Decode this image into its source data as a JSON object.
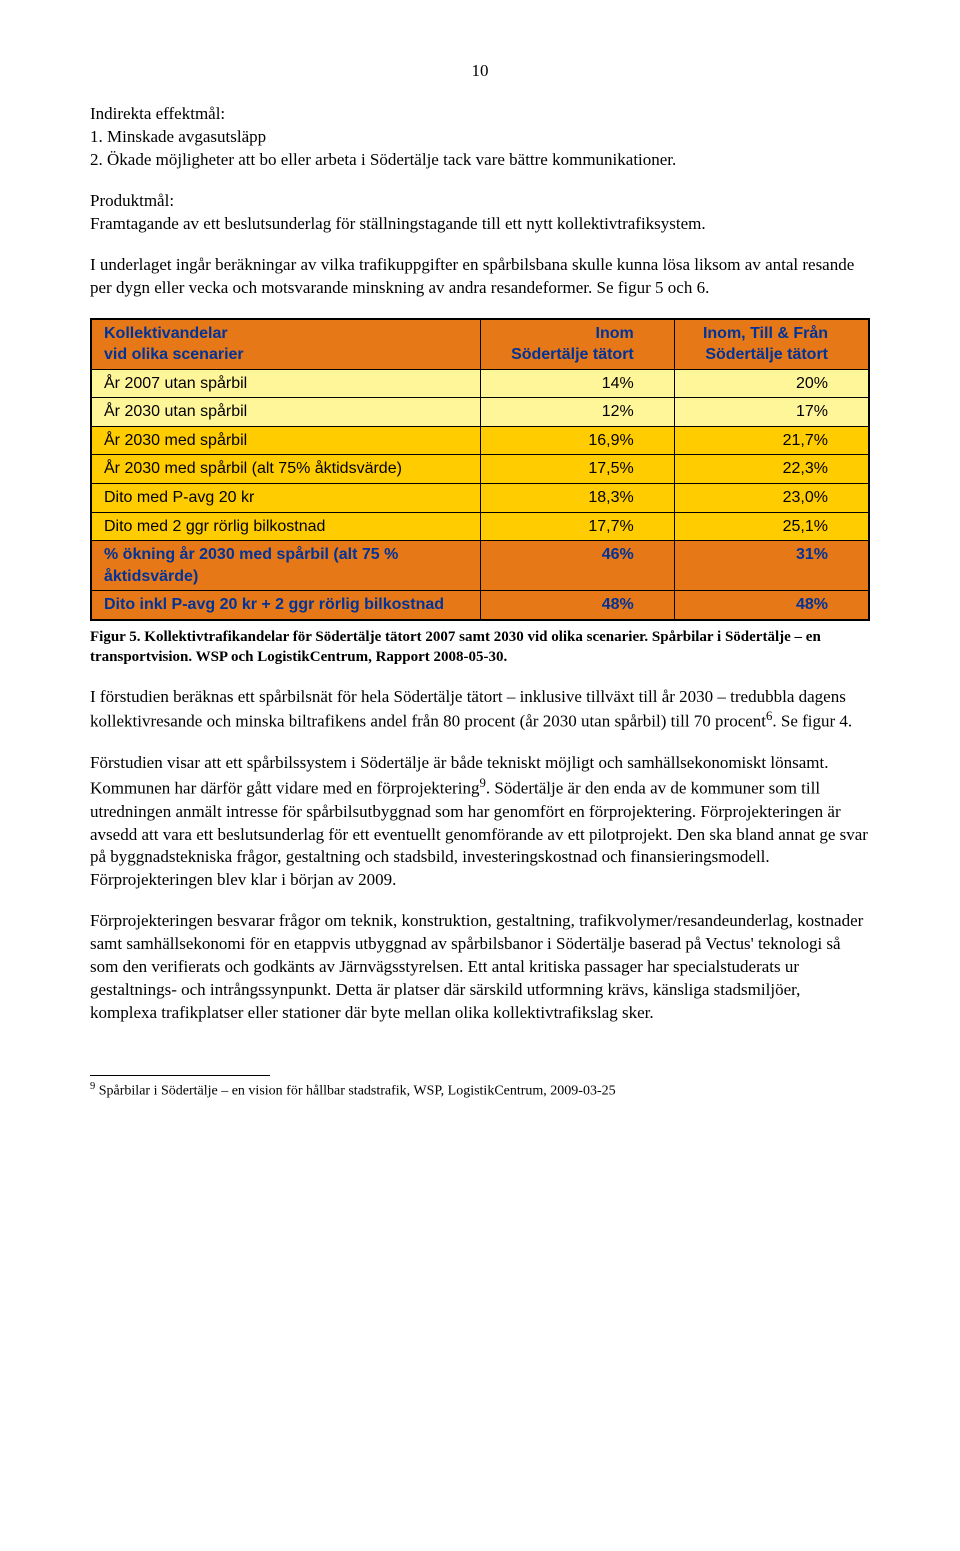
{
  "page_number": "10",
  "p1_lead": "Indirekta effektmål:",
  "p1_item1": "1. Minskade avgasutsläpp",
  "p1_item2": "2. Ökade möjligheter att bo eller arbeta i Södertälje tack vare bättre kommunikationer.",
  "p2a": "Produktmål:",
  "p2b": "Framtagande av ett beslutsunderlag för ställningstagande till ett nytt kollektivtrafiksystem.",
  "p3": "I underlaget ingår beräkningar av vilka trafikuppgifter en spårbilsbana skulle kunna lösa liksom av antal resande per dygn eller vecka och motsvarande minskning av andra resandeformer. Se figur 5 och 6.",
  "table": {
    "colors": {
      "header_bg": "#e77817",
      "body_bg": "#fff599",
      "highlight_bg": "#ffcc00",
      "header_text": "#003399",
      "body_text": "#000000"
    },
    "header": {
      "c1a": "Kollektivandelar",
      "c1b": "vid olika scenarier",
      "c2a": "Inom",
      "c2b": "Södertälje tätort",
      "c3a": "Inom, Till & Från",
      "c3b": "Södertälje tätort"
    },
    "rows": [
      {
        "label": "År 2007 utan spårbil",
        "v1": "14%",
        "v2": "20%",
        "hl": false
      },
      {
        "label": "År 2030 utan spårbil",
        "v1": "12%",
        "v2": "17%",
        "hl": false
      },
      {
        "label": "År 2030 med spårbil",
        "v1": "16,9%",
        "v2": "21,7%",
        "hl": true
      },
      {
        "label": "År 2030 med spårbil (alt 75% åktidsvärde)",
        "v1": "17,5%",
        "v2": "22,3%",
        "hl": true
      },
      {
        "label": "Dito med P-avg 20 kr",
        "v1": "18,3%",
        "v2": "23,0%",
        "hl": true
      },
      {
        "label": "Dito med  2 ggr rörlig bilkostnad",
        "v1": "17,7%",
        "v2": "25,1%",
        "hl": true
      },
      {
        "label": "% ökning år 2030 med spårbil (alt 75 % åktidsvärde)",
        "v1": "46%",
        "v2": "31%",
        "hl": false,
        "is_header": true
      },
      {
        "label": "Dito inkl P-avg 20 kr + 2 ggr rörlig bilkostnad",
        "v1": "48%",
        "v2": "48%",
        "hl": false,
        "is_header": true
      }
    ]
  },
  "caption": "Figur 5. Kollektivtrafikandelar för Södertälje tätort 2007 samt 2030 vid olika scenarier. Spårbilar i Södertälje – en transportvision. WSP och LogistikCentrum, Rapport 2008-05-30.",
  "p4a": "I förstudien beräknas ett spårbilsnät för hela Södertälje tätort – inklusive tillväxt till år 2030 – tredubbla dagens kollektivresande och minska biltrafikens andel från 80 procent (år 2030 utan spårbil) till 70 procent",
  "p4sup": "6",
  "p4b": ". Se figur 4.",
  "p5a": "Förstudien visar att ett spårbilssystem i Södertälje är både tekniskt möjligt och samhällsekonomiskt lönsamt. Kommunen har därför gått vidare med en förprojektering",
  "p5sup": "9",
  "p5b": ". Södertälje är den enda av de kommuner som till utredningen anmält intresse för spårbilsutbyggnad som har genomfört en förprojektering. Förprojekteringen är avsedd att vara ett beslutsunderlag för ett eventuellt genomförande av ett pilotprojekt. Den ska bland annat ge svar på byggnadstekniska frågor, gestaltning och stadsbild, investeringskostnad och finansieringsmodell. Förprojekteringen blev klar i början av 2009.",
  "p6": "Förprojekteringen besvarar frågor om teknik, konstruktion, gestaltning, trafikvolymer/resandeunderlag, kostnader samt samhällsekonomi för en etappvis utbyggnad av spårbilsbanor i Södertälje baserad på Vectus' teknologi så som den verifierats och godkänts av Järnvägsstyrelsen. Ett antal kritiska passager har specialstuderats ur gestaltnings- och intrångssynpunkt. Detta är platser där särskild utformning krävs, känsliga stadsmiljöer, komplexa trafikplatser eller stationer där byte mellan olika kollektivtrafikslag sker.",
  "footnote_num": "9",
  "footnote_text": " Spårbilar i Södertälje – en vision för hållbar stadstrafik, WSP, LogistikCentrum, 2009-03-25"
}
